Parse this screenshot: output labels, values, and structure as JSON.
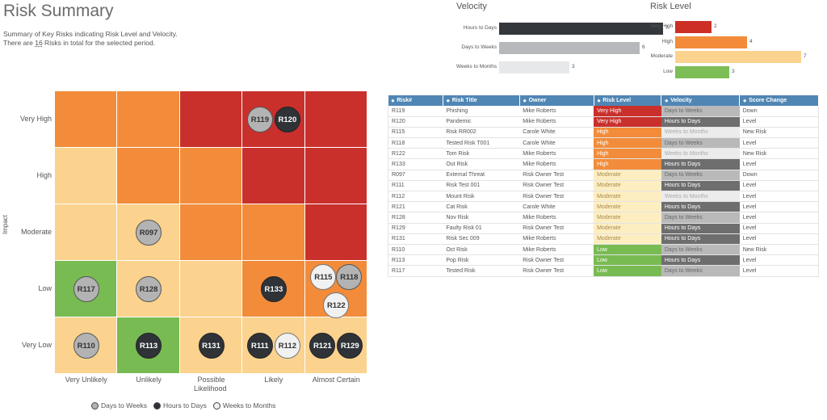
{
  "header": {
    "title": "Risk Summary",
    "summary_line1": "Summary of Key Risks indicating Risk Level and Velocity.",
    "summary_pre": "There are ",
    "summary_count": "16",
    "summary_post": " Risks in total for the selected period."
  },
  "colors": {
    "very_high": "#c9302c",
    "high": "#f28c3a",
    "moderate": "#fbd28e",
    "low": "#78bb52",
    "hours_to_days": "#2f3338",
    "days_to_weeks": "#b3b3b3",
    "weeks_to_months": "#e6e6e6",
    "header_blue": "#4f86b4"
  },
  "velocity_chart": {
    "title": "Velocity",
    "items": [
      {
        "label": "Hours to Days",
        "value": 7,
        "color": "#34383d"
      },
      {
        "label": "Days to Weeks",
        "value": 6,
        "color": "#b6b8bb"
      },
      {
        "label": "Weeks to Months",
        "value": 3,
        "color": "#e7e8ea"
      }
    ]
  },
  "level_chart": {
    "title": "Risk Level",
    "items": [
      {
        "label": "Very High",
        "value": 2,
        "color": "#cd2f27"
      },
      {
        "label": "High",
        "value": 4,
        "color": "#f28c3a"
      },
      {
        "label": "Moderate",
        "value": 7,
        "color": "#fbd28e"
      },
      {
        "label": "Low",
        "value": 3,
        "color": "#7dbd56"
      }
    ]
  },
  "matrix": {
    "y_axis_title": "Impact",
    "x_axis_title": "Likelihood",
    "rows": [
      "Very High",
      "High",
      "Moderate",
      "Low",
      "Very Low"
    ],
    "cols": [
      "Very Unlikely",
      "Unlikely",
      "Possible",
      "Likely",
      "Almost Certain"
    ],
    "cell_colors": [
      [
        "#f28c3a",
        "#f28c3a",
        "#c9302c",
        "#c9302c",
        "#c9302c"
      ],
      [
        "#fbd28e",
        "#f28c3a",
        "#f28c3a",
        "#c9302c",
        "#c9302c"
      ],
      [
        "#fbd28e",
        "#fbd28e",
        "#f28c3a",
        "#f28c3a",
        "#c9302c"
      ],
      [
        "#78bb52",
        "#fbd28e",
        "#fbd28e",
        "#f28c3a",
        "#f28c3a"
      ],
      [
        "#fbd28e",
        "#78bb52",
        "#fbd28e",
        "#fbd28e",
        "#fbd28e"
      ]
    ],
    "risks": [
      {
        "id": "R119",
        "row": 0,
        "col": 3,
        "velocity": "dw"
      },
      {
        "id": "R120",
        "row": 0,
        "col": 3,
        "velocity": "hd"
      },
      {
        "id": "R097",
        "row": 2,
        "col": 1,
        "velocity": "dw"
      },
      {
        "id": "R117",
        "row": 3,
        "col": 0,
        "velocity": "dw"
      },
      {
        "id": "R128",
        "row": 3,
        "col": 1,
        "velocity": "dw"
      },
      {
        "id": "R133",
        "row": 3,
        "col": 3,
        "velocity": "hd"
      },
      {
        "id": "R115",
        "row": 3,
        "col": 4,
        "velocity": "wm"
      },
      {
        "id": "R118",
        "row": 3,
        "col": 4,
        "velocity": "dw"
      },
      {
        "id": "R122",
        "row": 3,
        "col": 4,
        "velocity": "wm"
      },
      {
        "id": "R110",
        "row": 4,
        "col": 0,
        "velocity": "dw"
      },
      {
        "id": "R113",
        "row": 4,
        "col": 1,
        "velocity": "hd"
      },
      {
        "id": "R131",
        "row": 4,
        "col": 2,
        "velocity": "hd"
      },
      {
        "id": "R111",
        "row": 4,
        "col": 3,
        "velocity": "hd"
      },
      {
        "id": "R112",
        "row": 4,
        "col": 3,
        "velocity": "wm"
      },
      {
        "id": "R121",
        "row": 4,
        "col": 4,
        "velocity": "hd"
      },
      {
        "id": "R129",
        "row": 4,
        "col": 4,
        "velocity": "hd"
      }
    ]
  },
  "legend": [
    {
      "label": "Days to Weeks",
      "key": "dw"
    },
    {
      "label": "Hours to Days",
      "key": "hd"
    },
    {
      "label": "Weeks to Months",
      "key": "wm"
    }
  ],
  "table": {
    "headers": [
      "Risk#",
      "Risk Title",
      "Owner",
      "Risk Level",
      "Velocity",
      "Score Change"
    ],
    "rows": [
      [
        "R119",
        "Phishing",
        "Mike Roberts",
        "Very High",
        "Days to Weeks",
        "Down"
      ],
      [
        "R120",
        "Pandemic",
        "Mike Roberts",
        "Very High",
        "Hours to Days",
        "Level"
      ],
      [
        "R115",
        "Risk RR002",
        "Carole White",
        "High",
        "Weeks to Months",
        "New Risk"
      ],
      [
        "R118",
        "Tested Risk T001",
        "Carole White",
        "High",
        "Days to Weeks",
        "Level"
      ],
      [
        "R122",
        "Tom Risk",
        "Mike Roberts",
        "High",
        "Weeks to Months",
        "New Risk"
      ],
      [
        "R133",
        "Out Risk",
        "Mike Roberts",
        "High",
        "Hours to Days",
        "Level"
      ],
      [
        "R097",
        "External Threat",
        "Risk Owner Test",
        "Moderate",
        "Days to Weeks",
        "Down"
      ],
      [
        "R111",
        "Risk Test 001",
        "Risk Owner Test",
        "Moderate",
        "Hours to Days",
        "Level"
      ],
      [
        "R112",
        "Mount Risk",
        "Risk Owner Test",
        "Moderate",
        "Weeks to Months",
        "Level"
      ],
      [
        "R121",
        "Cat Risk",
        "Carole White",
        "Moderate",
        "Hours to Days",
        "Level"
      ],
      [
        "R128",
        "Nov Risk",
        "Mike Roberts",
        "Moderate",
        "Days to Weeks",
        "Level"
      ],
      [
        "R129",
        "Faulty Risk 01",
        "Risk Owner Test",
        "Moderate",
        "Hours to Days",
        "Level"
      ],
      [
        "R131",
        "Risk Sec 009",
        "Mike Roberts",
        "Moderate",
        "Hours to Days",
        "Level"
      ],
      [
        "R110",
        "Oct Risk",
        "Mike Roberts",
        "Low",
        "Days to Weeks",
        "New Risk"
      ],
      [
        "R113",
        "Pop Risk",
        "Risk Owner Test",
        "Low",
        "Hours to Days",
        "Level"
      ],
      [
        "R117",
        "Tested Risk",
        "Risk Owner Test",
        "Low",
        "Days to Weeks",
        "Level"
      ]
    ]
  }
}
